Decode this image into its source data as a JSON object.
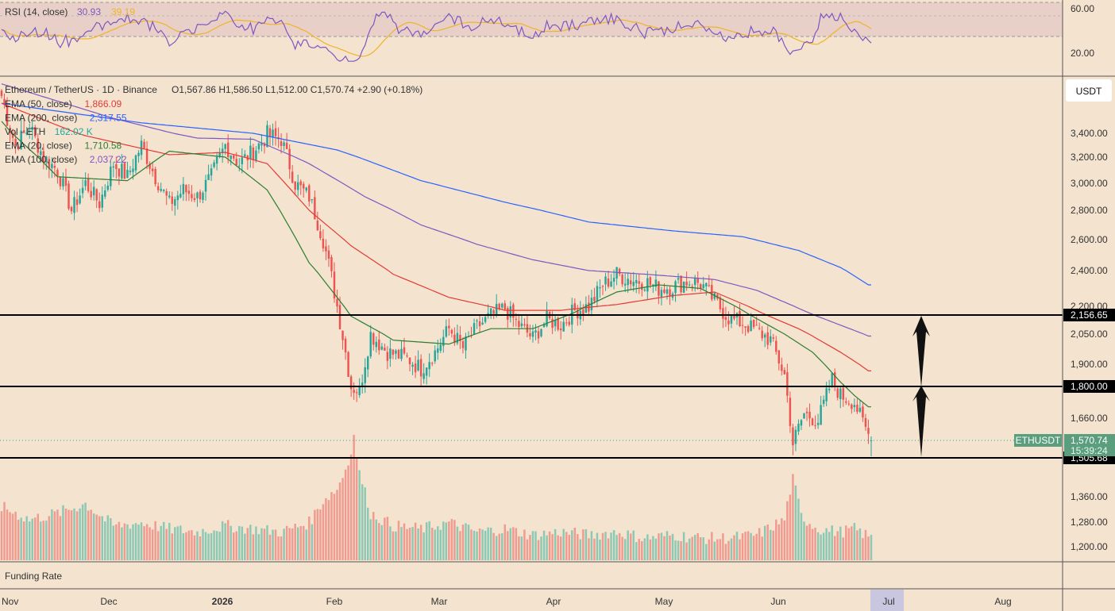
{
  "rsi": {
    "title": "RSI (14, close)",
    "value": "30.93",
    "value2": "39.19",
    "levels": [
      "60.00",
      "20.00"
    ]
  },
  "header": {
    "symbol": "Ethereum / TetherUS · 1D · Binance",
    "ohlc": "O1,567.86  H1,586.50  L1,512.00  C1,570.74  +2.90 (+0.18%)"
  },
  "legend": [
    {
      "label": "EMA (50, close)",
      "value": "1,866.09",
      "color": "#e53935"
    },
    {
      "label": "EMA (200, close)",
      "value": "2,317.55",
      "color": "#2962ff"
    },
    {
      "label": "Vol · ETH",
      "value": "162.02 K",
      "color": "#26a69a"
    },
    {
      "label": "EMA (20, close)",
      "value": "1,710.58",
      "color": "#2e7d32"
    },
    {
      "label": "EMA (100, close)",
      "value": "2,037.22",
      "color": "#7e57c2"
    }
  ],
  "currency_button": "USDT",
  "bottom_pane": {
    "label": "Funding Rate"
  },
  "price_axis": [
    "3,400.00",
    "3,200.00",
    "3,000.00",
    "2,800.00",
    "2,600.00",
    "2,400.00",
    "2,200.00",
    "2,050.00",
    "1,900.00",
    "1,660.00",
    "1,360.00",
    "1,280.00",
    "1,200.00"
  ],
  "levels": [
    {
      "price": 2156.65,
      "label": "2,156.65"
    },
    {
      "price": 1800.0,
      "label": "1,800.00"
    },
    {
      "price": 1505.68,
      "label": "1,505.68"
    }
  ],
  "last_price": {
    "ticker": "ETHUSDT",
    "price": "1,570.74",
    "countdown": "15:39:24"
  },
  "time_axis": [
    "Nov",
    "Dec",
    "2026",
    "Feb",
    "Mar",
    "Apr",
    "May",
    "Jun",
    "Jul",
    "Aug"
  ],
  "colors": {
    "up": "#26a69a",
    "down": "#ef5350",
    "bg": "#f3e3cf"
  },
  "chart_data": {
    "type": "candlestick",
    "title": "Ethereum / TetherUS · 1D · Binance",
    "ylim": [
      1140,
      3760
    ],
    "ema_20_keys": [
      [
        0,
        3480
      ],
      [
        20,
        3050
      ],
      [
        45,
        3020
      ],
      [
        60,
        3250
      ],
      [
        80,
        3200
      ],
      [
        95,
        2950
      ],
      [
        110,
        2450
      ],
      [
        125,
        2150
      ],
      [
        140,
        2020
      ],
      [
        160,
        2000
      ],
      [
        175,
        2080
      ],
      [
        190,
        2080
      ],
      [
        205,
        2170
      ],
      [
        220,
        2280
      ],
      [
        235,
        2320
      ],
      [
        250,
        2300
      ],
      [
        265,
        2180
      ],
      [
        280,
        2050
      ],
      [
        290,
        1960
      ],
      [
        300,
        1820
      ],
      [
        305,
        1760
      ],
      [
        310,
        1710
      ]
    ],
    "ema_50_keys": [
      [
        0,
        3600
      ],
      [
        30,
        3380
      ],
      [
        60,
        3220
      ],
      [
        80,
        3240
      ],
      [
        95,
        3150
      ],
      [
        110,
        2800
      ],
      [
        125,
        2560
      ],
      [
        140,
        2380
      ],
      [
        160,
        2250
      ],
      [
        180,
        2180
      ],
      [
        200,
        2180
      ],
      [
        220,
        2210
      ],
      [
        240,
        2260
      ],
      [
        255,
        2280
      ],
      [
        270,
        2180
      ],
      [
        285,
        2080
      ],
      [
        300,
        1960
      ],
      [
        310,
        1870
      ]
    ],
    "ema_100_keys": [
      [
        0,
        3730
      ],
      [
        40,
        3500
      ],
      [
        70,
        3360
      ],
      [
        90,
        3350
      ],
      [
        110,
        3150
      ],
      [
        130,
        2900
      ],
      [
        150,
        2700
      ],
      [
        170,
        2570
      ],
      [
        190,
        2470
      ],
      [
        210,
        2400
      ],
      [
        230,
        2380
      ],
      [
        255,
        2350
      ],
      [
        270,
        2290
      ],
      [
        285,
        2190
      ],
      [
        300,
        2100
      ],
      [
        310,
        2040
      ]
    ],
    "ema_200_keys": [
      [
        0,
        3600
      ],
      [
        50,
        3470
      ],
      [
        90,
        3400
      ],
      [
        120,
        3260
      ],
      [
        150,
        3020
      ],
      [
        180,
        2860
      ],
      [
        210,
        2720
      ],
      [
        240,
        2660
      ],
      [
        265,
        2620
      ],
      [
        285,
        2530
      ],
      [
        300,
        2420
      ],
      [
        310,
        2320
      ]
    ],
    "close_keys": [
      [
        0,
        3650
      ],
      [
        5,
        3300
      ],
      [
        10,
        3450
      ],
      [
        15,
        3200
      ],
      [
        20,
        3100
      ],
      [
        25,
        2800
      ],
      [
        30,
        3000
      ],
      [
        35,
        2850
      ],
      [
        40,
        3150
      ],
      [
        45,
        3050
      ],
      [
        50,
        3300
      ],
      [
        55,
        3050
      ],
      [
        60,
        2850
      ],
      [
        65,
        2950
      ],
      [
        70,
        2900
      ],
      [
        75,
        3050
      ],
      [
        80,
        3300
      ],
      [
        85,
        3150
      ],
      [
        90,
        3250
      ],
      [
        95,
        3380
      ],
      [
        100,
        3350
      ],
      [
        105,
        3000
      ],
      [
        110,
        2900
      ],
      [
        115,
        2600
      ],
      [
        120,
        2200
      ],
      [
        125,
        1800
      ],
      [
        128,
        1780
      ],
      [
        132,
        2050
      ],
      [
        138,
        1960
      ],
      [
        145,
        1930
      ],
      [
        150,
        1880
      ],
      [
        155,
        1960
      ],
      [
        160,
        2080
      ],
      [
        165,
        1980
      ],
      [
        170,
        2090
      ],
      [
        175,
        2150
      ],
      [
        180,
        2190
      ],
      [
        185,
        2100
      ],
      [
        190,
        2030
      ],
      [
        195,
        2130
      ],
      [
        200,
        2100
      ],
      [
        205,
        2180
      ],
      [
        210,
        2200
      ],
      [
        215,
        2320
      ],
      [
        220,
        2380
      ],
      [
        225,
        2350
      ],
      [
        230,
        2340
      ],
      [
        235,
        2300
      ],
      [
        240,
        2310
      ],
      [
        245,
        2340
      ],
      [
        250,
        2330
      ],
      [
        255,
        2230
      ],
      [
        260,
        2140
      ],
      [
        265,
        2110
      ],
      [
        270,
        2070
      ],
      [
        275,
        2020
      ],
      [
        280,
        1850
      ],
      [
        283,
        1560
      ],
      [
        287,
        1680
      ],
      [
        292,
        1650
      ],
      [
        297,
        1830
      ],
      [
        300,
        1760
      ],
      [
        305,
        1730
      ],
      [
        308,
        1640
      ],
      [
        311,
        1571
      ]
    ],
    "volume_base": 1180,
    "volume_keys": [
      [
        0,
        1320
      ],
      [
        10,
        1280
      ],
      [
        20,
        1300
      ],
      [
        30,
        1330
      ],
      [
        40,
        1260
      ],
      [
        50,
        1270
      ],
      [
        60,
        1250
      ],
      [
        70,
        1240
      ],
      [
        80,
        1260
      ],
      [
        90,
        1250
      ],
      [
        100,
        1240
      ],
      [
        110,
        1270
      ],
      [
        115,
        1340
      ],
      [
        120,
        1380
      ],
      [
        124,
        1480
      ],
      [
        126,
        1580
      ],
      [
        128,
        1440
      ],
      [
        132,
        1300
      ],
      [
        140,
        1260
      ],
      [
        150,
        1250
      ],
      [
        160,
        1270
      ],
      [
        170,
        1240
      ],
      [
        180,
        1250
      ],
      [
        190,
        1230
      ],
      [
        200,
        1240
      ],
      [
        210,
        1230
      ],
      [
        220,
        1240
      ],
      [
        230,
        1220
      ],
      [
        240,
        1230
      ],
      [
        250,
        1220
      ],
      [
        260,
        1220
      ],
      [
        270,
        1230
      ],
      [
        280,
        1280
      ],
      [
        283,
        1420
      ],
      [
        286,
        1290
      ],
      [
        292,
        1250
      ],
      [
        300,
        1240
      ],
      [
        305,
        1250
      ],
      [
        311,
        1220
      ]
    ]
  }
}
